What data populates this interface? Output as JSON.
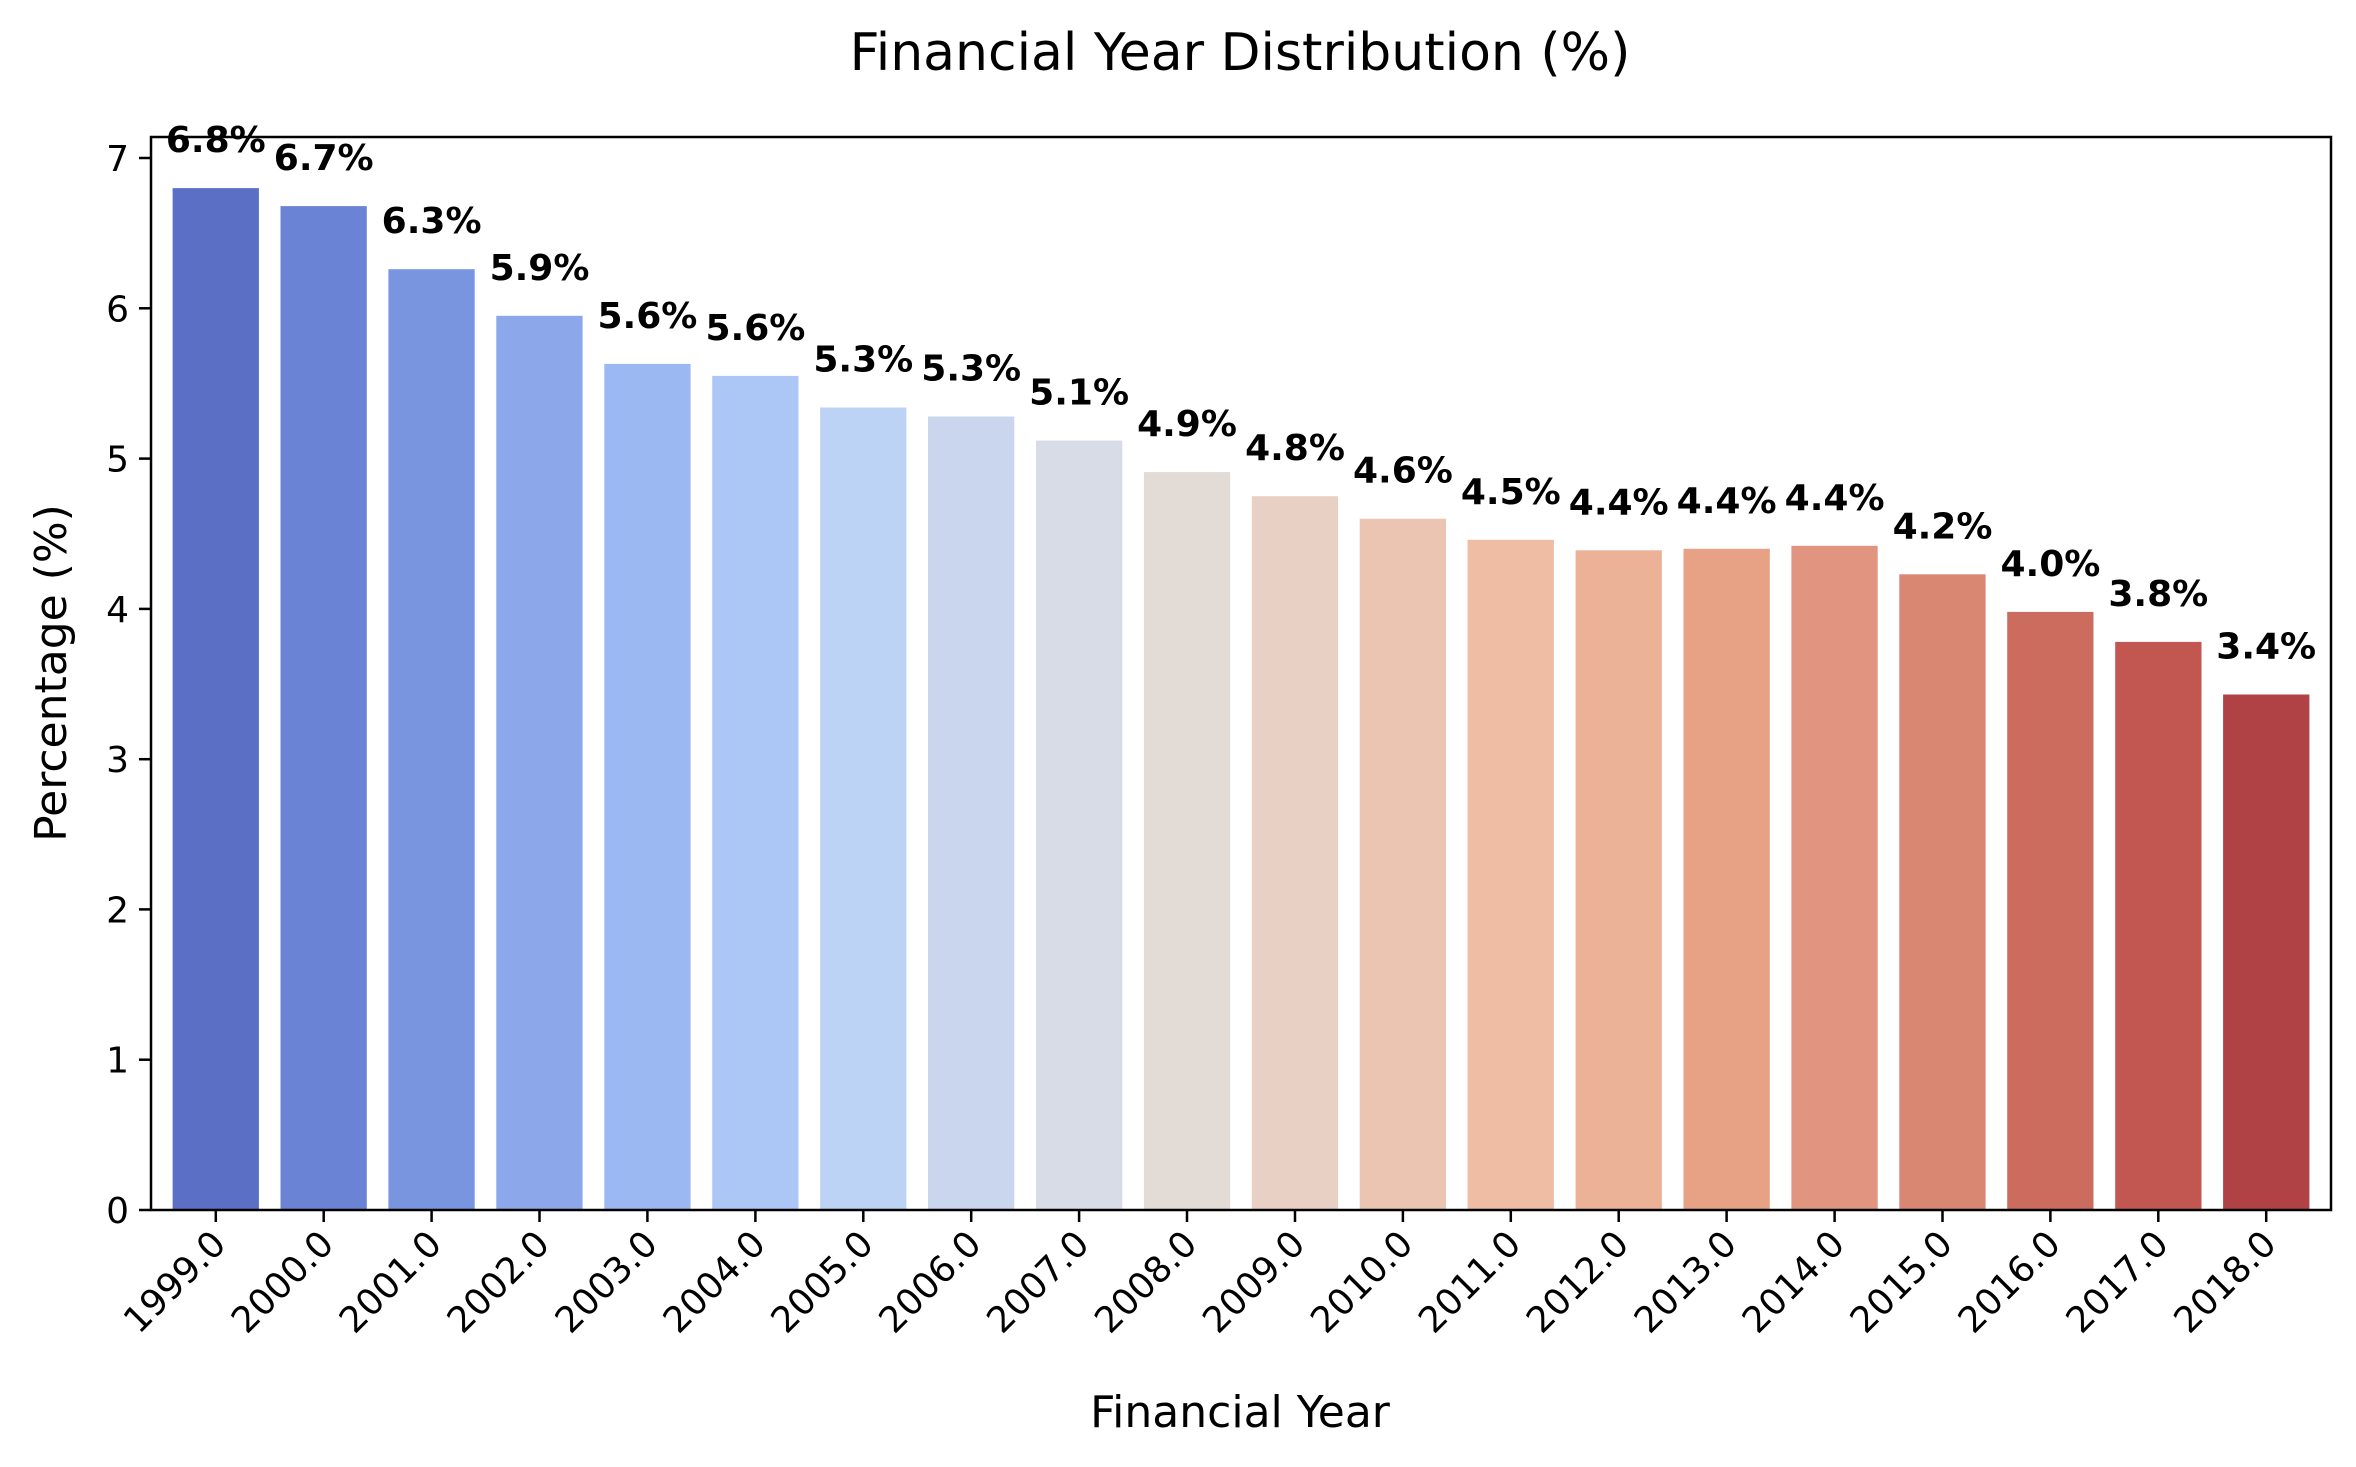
{
  "chart_data": {
    "type": "bar",
    "title": "Financial Year Distribution (%)",
    "xlabel": "Financial Year",
    "ylabel": "Percentage (%)",
    "categories": [
      "1999.0",
      "2000.0",
      "2001.0",
      "2002.0",
      "2003.0",
      "2004.0",
      "2005.0",
      "2006.0",
      "2007.0",
      "2008.0",
      "2009.0",
      "2010.0",
      "2011.0",
      "2012.0",
      "2013.0",
      "2014.0",
      "2015.0",
      "2016.0",
      "2017.0",
      "2018.0"
    ],
    "values": [
      6.8,
      6.68,
      6.26,
      5.95,
      5.63,
      5.55,
      5.34,
      5.28,
      5.12,
      4.91,
      4.75,
      4.6,
      4.46,
      4.39,
      4.4,
      4.42,
      4.23,
      3.98,
      3.78,
      3.43
    ],
    "data_labels": [
      "6.8%",
      "6.7%",
      "6.3%",
      "5.9%",
      "5.6%",
      "5.6%",
      "5.3%",
      "5.3%",
      "5.1%",
      "4.9%",
      "4.8%",
      "4.6%",
      "4.5%",
      "4.4%",
      "4.4%",
      "4.4%",
      "4.2%",
      "4.0%",
      "3.8%",
      "3.4%"
    ],
    "colors": [
      "#5b70c5",
      "#6b83d5",
      "#7a95e0",
      "#8ca7ea",
      "#9bb8f2",
      "#acc7f5",
      "#bcd3f5",
      "#c9d6ee",
      "#d7dce6",
      "#e2dbd6",
      "#e9d0c4",
      "#ecc5b2",
      "#eebda3",
      "#ecb297",
      "#e7a285",
      "#e19480",
      "#d98672",
      "#cc6c5f",
      "#c25651",
      "#b04245"
    ],
    "yticks": [
      "0",
      "1",
      "2",
      "3",
      "4",
      "5",
      "6",
      "7"
    ],
    "ylim": [
      0,
      7.14
    ],
    "grid": false,
    "legend": "none"
  }
}
